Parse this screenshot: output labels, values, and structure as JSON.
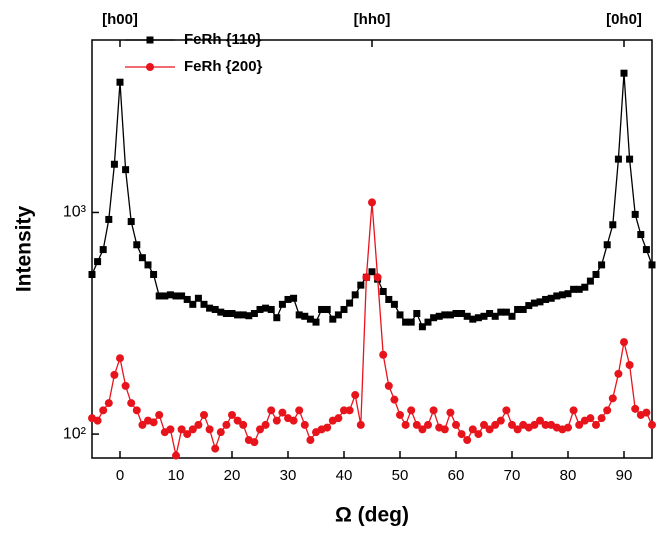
{
  "chart_data": {
    "type": "line",
    "xlabel": "Ω (deg)",
    "ylabel": "Intensity",
    "x": [
      -5,
      -4,
      -3,
      -2,
      -1,
      0,
      1,
      2,
      3,
      4,
      5,
      6,
      7,
      8,
      9,
      10,
      11,
      12,
      13,
      14,
      15,
      16,
      17,
      18,
      19,
      20,
      21,
      22,
      23,
      24,
      25,
      26,
      27,
      28,
      29,
      30,
      31,
      32,
      33,
      34,
      35,
      36,
      37,
      38,
      39,
      40,
      41,
      42,
      43,
      44,
      45,
      46,
      47,
      48,
      49,
      50,
      51,
      52,
      53,
      54,
      55,
      56,
      57,
      58,
      59,
      60,
      61,
      62,
      63,
      64,
      65,
      66,
      67,
      68,
      69,
      70,
      71,
      72,
      73,
      74,
      75,
      76,
      77,
      78,
      79,
      80,
      81,
      82,
      83,
      84,
      85,
      86,
      87,
      88,
      89,
      90,
      91,
      92,
      93,
      94,
      95
    ],
    "series": [
      {
        "name": "FeRh {110}",
        "color": "#000000",
        "marker": "square",
        "values": [
          525,
          600,
          680,
          930,
          1650,
          3870,
          1560,
          910,
          715,
          625,
          580,
          525,
          420,
          420,
          425,
          420,
          420,
          405,
          385,
          410,
          385,
          370,
          365,
          355,
          350,
          350,
          345,
          345,
          342,
          350,
          365,
          370,
          365,
          335,
          385,
          405,
          410,
          345,
          340,
          330,
          320,
          365,
          365,
          330,
          345,
          365,
          390,
          425,
          470,
          510,
          540,
          500,
          440,
          405,
          385,
          345,
          320,
          320,
          350,
          305,
          320,
          335,
          340,
          345,
          345,
          350,
          350,
          340,
          330,
          335,
          340,
          350,
          340,
          355,
          355,
          340,
          365,
          365,
          380,
          390,
          395,
          405,
          410,
          420,
          425,
          430,
          450,
          450,
          460,
          490,
          525,
          580,
          715,
          880,
          1740,
          4250,
          1740,
          980,
          795,
          680,
          580
        ]
      },
      {
        "name": "FeRh {200}",
        "color": "#e8141c",
        "marker": "circle",
        "values": [
          118,
          115,
          128,
          138,
          185,
          220,
          165,
          138,
          128,
          110,
          115,
          113,
          122,
          102,
          105,
          80,
          105,
          100,
          105,
          110,
          122,
          105,
          86,
          102,
          110,
          122,
          115,
          110,
          94,
          92,
          105,
          110,
          128,
          115,
          125,
          118,
          115,
          128,
          110,
          94,
          102,
          105,
          107,
          115,
          118,
          128,
          128,
          150,
          110,
          510,
          1110,
          510,
          228,
          165,
          143,
          122,
          110,
          128,
          110,
          105,
          110,
          128,
          107,
          105,
          125,
          110,
          100,
          94,
          105,
          100,
          110,
          105,
          110,
          115,
          128,
          110,
          105,
          110,
          107,
          110,
          115,
          110,
          110,
          107,
          105,
          107,
          128,
          110,
          115,
          118,
          110,
          118,
          128,
          145,
          187,
          260,
          205,
          130,
          122,
          125,
          110
        ]
      }
    ],
    "xlim": [
      -5,
      95
    ],
    "xticks": [
      0,
      10,
      20,
      30,
      40,
      50,
      60,
      70,
      80,
      90
    ],
    "ylim": [
      78,
      6000
    ],
    "log_y": true,
    "yticks": [
      {
        "value": 100,
        "label": "10²"
      },
      {
        "value": 1000,
        "label": "10³"
      }
    ],
    "top_ticks": [
      {
        "value": 0,
        "label": "[h00]"
      },
      {
        "value": 45,
        "label": "[hh0]"
      },
      {
        "value": 90,
        "label": "[0h0]"
      }
    ],
    "legend": "upper left"
  }
}
